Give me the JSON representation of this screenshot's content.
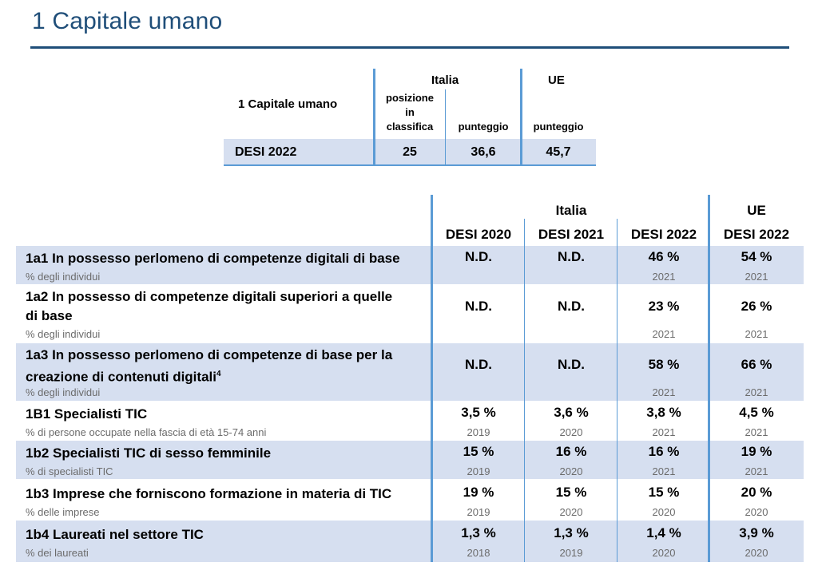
{
  "page_title": "1 Capitale umano",
  "summary": {
    "label": "1 Capitale umano",
    "italia_header": "Italia",
    "ue_header": "UE",
    "rank_header_lines": [
      "posizione",
      "in",
      "classifica"
    ],
    "score_header": "punteggio",
    "ue_score_header": "punteggio",
    "row_label": "DESI 2022",
    "rank": "25",
    "score": "36,6",
    "ue_score": "45,7"
  },
  "indicators_table": {
    "italia_header": "Italia",
    "ue_header": "UE",
    "columns": [
      "DESI 2020",
      "DESI 2021",
      "DESI 2022",
      "DESI 2022"
    ],
    "rows": [
      {
        "title_lines": [
          "1a1 In possesso perlomeno di competenze digitali di base"
        ],
        "unit": "% degli individui",
        "values": [
          "N.D.",
          "N.D.",
          "46 %",
          "54 %"
        ],
        "years": [
          "",
          "",
          "2021",
          "2021"
        ]
      },
      {
        "title_lines": [
          "1a2 In possesso di competenze digitali superiori a quelle",
          "di base"
        ],
        "unit": "% degli individui",
        "values": [
          "N.D.",
          "N.D.",
          "23 %",
          "26 %"
        ],
        "years": [
          "",
          "",
          "2021",
          "2021"
        ]
      },
      {
        "title_lines": [
          "1a3 In possesso perlomeno di competenze di base per la",
          "creazione di contenuti digitali"
        ],
        "footnote": "4",
        "unit": "% degli individui",
        "values": [
          "N.D.",
          "N.D.",
          "58 %",
          "66 %"
        ],
        "years": [
          "",
          "",
          "2021",
          "2021"
        ]
      },
      {
        "title_lines": [
          "1B1 Specialisti TIC"
        ],
        "unit": "% di persone occupate nella fascia di età 15-74 anni",
        "values": [
          "3,5 %",
          "3,6 %",
          "3,8 %",
          "4,5 %"
        ],
        "years": [
          "2019",
          "2020",
          "2021",
          "2021"
        ]
      },
      {
        "title_lines": [
          "1b2 Specialisti TIC di sesso femminile"
        ],
        "unit": "% di specialisti TIC",
        "values": [
          "15 %",
          "16 %",
          "16 %",
          "19 %"
        ],
        "years": [
          "2019",
          "2020",
          "2021",
          "2021"
        ]
      },
      {
        "title_lines": [
          "1b3 Imprese che forniscono formazione in materia di TIC"
        ],
        "unit": "% delle imprese",
        "values": [
          "19 %",
          "15 %",
          "15 %",
          "20 %"
        ],
        "years": [
          "2019",
          "2020",
          "2020",
          "2020"
        ]
      },
      {
        "title_lines": [
          "1b4 Laureati nel settore TIC"
        ],
        "unit": "% dei laureati",
        "values": [
          "1,3 %",
          "1,3 %",
          "1,4 %",
          "3,9 %"
        ],
        "years": [
          "2018",
          "2019",
          "2020",
          "2020"
        ]
      }
    ]
  },
  "colors": {
    "title": "#1f4e79",
    "rule": "#1f4e79",
    "grid": "#5b9bd5",
    "row_shade": "#d6dff0",
    "muted_text": "#6b6b6b"
  }
}
